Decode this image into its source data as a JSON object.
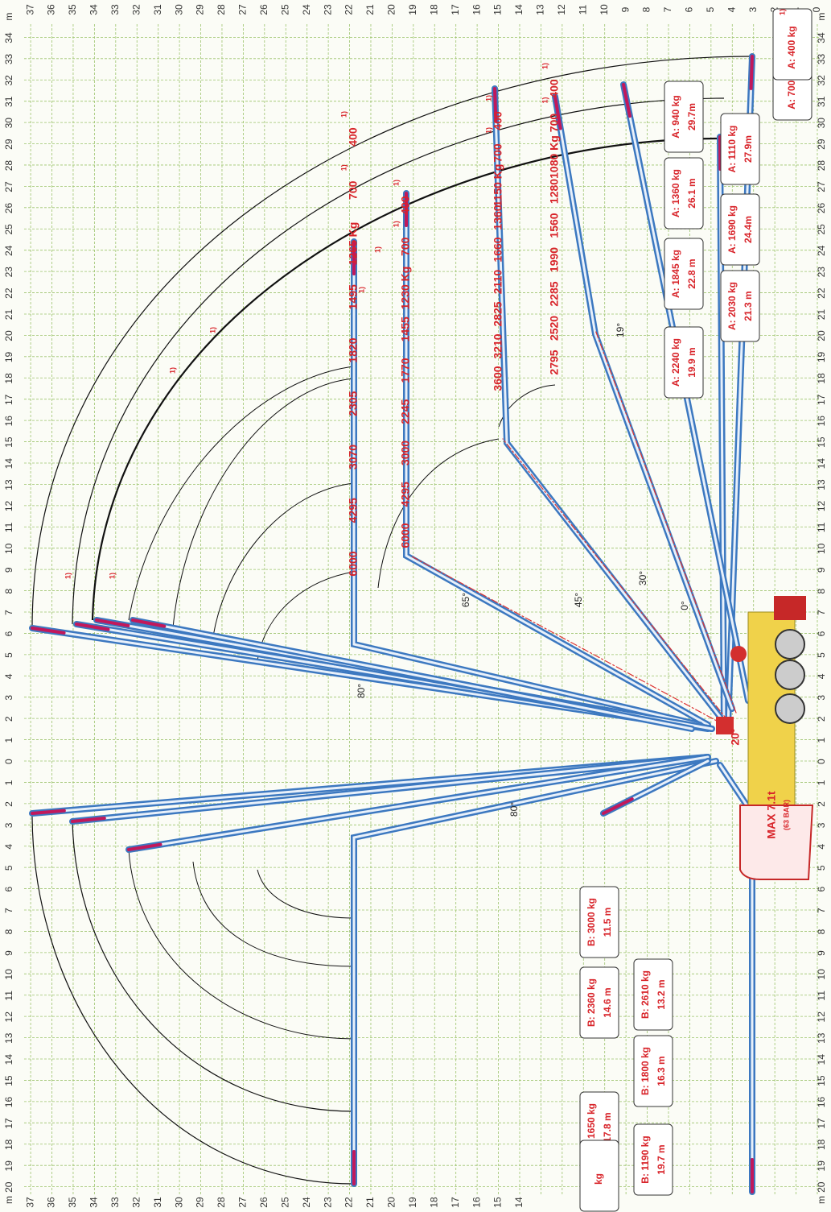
{
  "height_ticks_top": [
    37,
    36,
    35,
    34,
    33,
    32,
    31,
    30,
    29,
    28,
    27,
    26,
    25,
    24,
    23,
    22,
    21,
    20,
    19,
    18,
    17,
    16,
    15,
    14,
    13,
    12,
    11,
    10,
    9,
    8,
    7,
    6,
    5,
    4,
    3,
    2,
    1,
    0
  ],
  "height_ticks_bottom": [
    37,
    36,
    35,
    34,
    33,
    32,
    31,
    30,
    29,
    28,
    27,
    26,
    25,
    24,
    23,
    22,
    21,
    20,
    19,
    18,
    17,
    16,
    15,
    14
  ],
  "reach_ticks": [
    "m",
    34,
    33,
    32,
    31,
    30,
    29,
    28,
    27,
    26,
    25,
    24,
    23,
    22,
    21,
    20,
    19,
    18,
    17,
    16,
    15,
    14,
    13,
    12,
    11,
    10,
    9,
    8,
    7,
    6,
    5,
    4,
    3,
    2,
    1,
    0,
    1,
    2,
    3,
    4,
    5,
    6,
    7,
    8,
    9,
    10,
    11,
    12,
    13,
    14,
    15,
    16,
    17,
    18,
    19,
    20,
    "m"
  ],
  "load_rows": [
    {
      "items": [
        {
          "text": "6000"
        },
        {
          "text": "4295"
        },
        {
          "text": "3070"
        },
        {
          "text": "2305"
        },
        {
          "text": "1820"
        },
        {
          "text": "1495"
        },
        {
          "text": "1265 Kg"
        },
        {
          "text": "700",
          "note": "1)"
        },
        {
          "text": "400",
          "note": "1)"
        }
      ]
    },
    {
      "items": [
        {
          "text": "6000"
        },
        {
          "text": "4295"
        },
        {
          "text": "3000"
        },
        {
          "text": "2245"
        },
        {
          "text": "1770"
        },
        {
          "text": "1455"
        },
        {
          "text": "1230 Kg"
        },
        {
          "text": "700",
          "note": "1)"
        },
        {
          "text": "400",
          "note": "1)"
        }
      ]
    },
    {
      "items": [
        {
          "text": "3600"
        },
        {
          "text": "3210"
        },
        {
          "text": "2825"
        },
        {
          "text": "2110"
        },
        {
          "text": "1660"
        },
        {
          "text": "1360"
        },
        {
          "text": "1150 Kg"
        },
        {
          "text": "700",
          "note": "1)"
        },
        {
          "text": "400",
          "note": "1)"
        }
      ]
    },
    {
      "items": [
        {
          "text": "2795"
        },
        {
          "text": "2520"
        },
        {
          "text": "2285"
        },
        {
          "text": "1990"
        },
        {
          "text": "1560"
        },
        {
          "text": "1280"
        },
        {
          "text": "1080 Kg"
        },
        {
          "text": "700",
          "note": "1)"
        },
        {
          "text": "400",
          "note": "1)"
        }
      ]
    }
  ],
  "boxes_a": [
    {
      "load": "A: 2240 kg",
      "reach": "19.9 m"
    },
    {
      "load": "A: 1845 kg",
      "reach": "22.8 m"
    },
    {
      "load": "A: 1360 kg",
      "reach": "26.1 m"
    },
    {
      "load": "A: 940 kg",
      "reach": "29.7m"
    },
    {
      "load": "A: 2030 kg",
      "reach": "21.3 m"
    },
    {
      "load": "A: 1690 kg",
      "reach": "24.4m"
    },
    {
      "load": "A: 1110 kg",
      "reach": "27.9m"
    },
    {
      "load": "A: 700 kg",
      "note": "1)"
    },
    {
      "load": "A: 400 kg",
      "note": "1)"
    }
  ],
  "boxes_b": [
    {
      "load": "B: 3000 kg",
      "reach": "11.5 m"
    },
    {
      "load": "B: 2610 kg",
      "reach": "13.2 m"
    },
    {
      "load": "B: 2360 kg",
      "reach": "14.6 m"
    },
    {
      "load": "B: 1800 kg",
      "reach": "16.3 m"
    },
    {
      "load": "B: 1650 kg",
      "reach": "17.8 m"
    },
    {
      "load": "B: 1190 kg",
      "reach": "19.7 m"
    },
    {
      "load": "kg"
    }
  ],
  "angles": [
    "80°",
    "80°",
    "65°",
    "45°",
    "30°",
    "0°",
    "19°",
    "20°"
  ],
  "notes": [
    "1)",
    "1)",
    "1)",
    "1)",
    "1)",
    "1)"
  ],
  "max_label": "MAX 7.1t",
  "pressure": "(63 BAR)"
}
